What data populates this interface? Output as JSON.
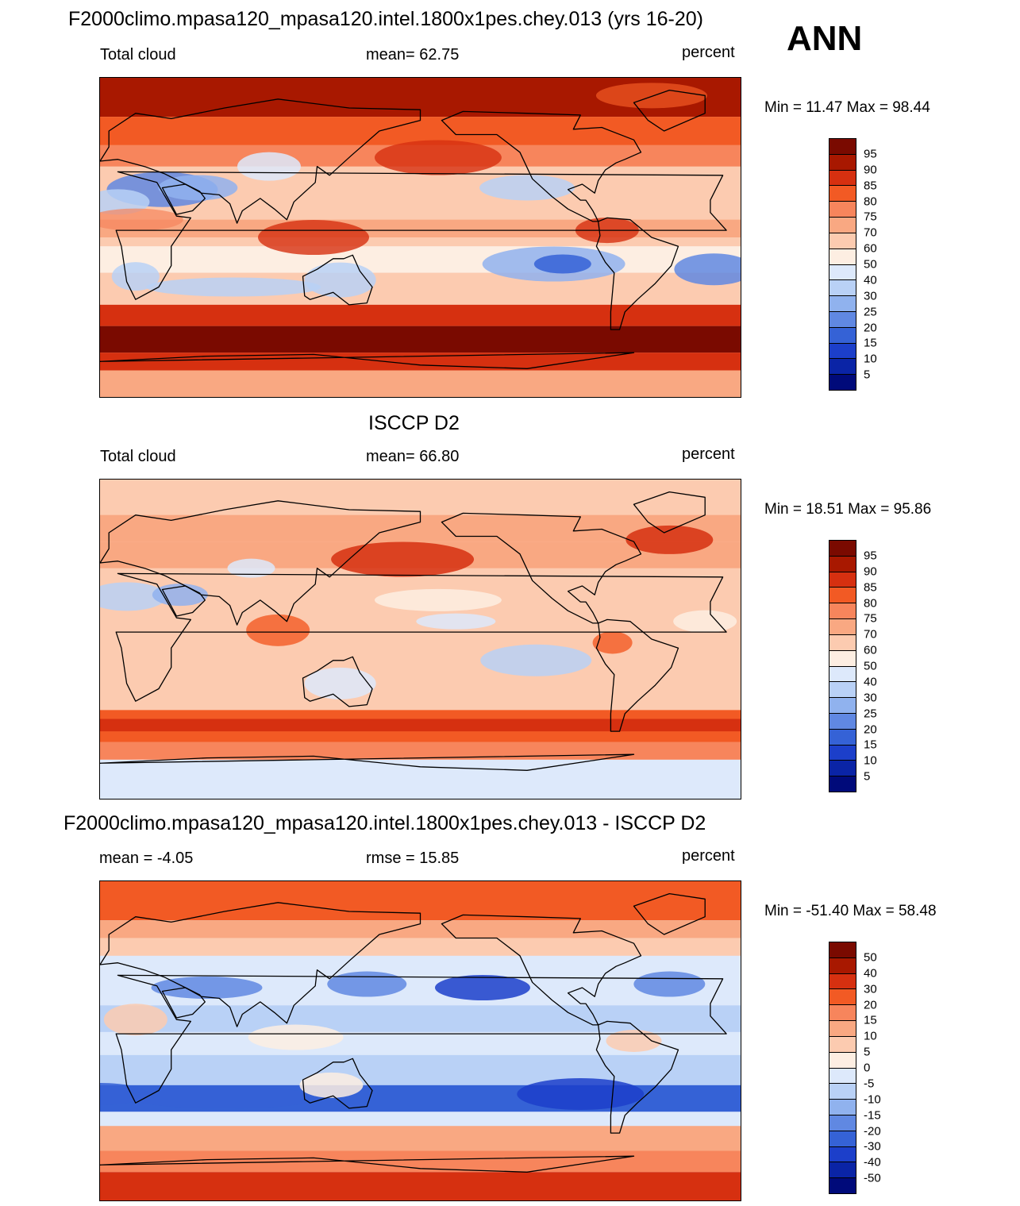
{
  "season": "ANN",
  "panels": [
    {
      "title": "F2000climo.mpasa120_mpasa120.intel.1800x1pes.chey.013 (yrs 16-20)",
      "left_label": "Total cloud",
      "center_label": "mean=  62.75",
      "right_label": "percent",
      "minmax": "Min =  11.47 Max =  98.44",
      "colorbar_labels": [
        "95",
        "90",
        "85",
        "80",
        "75",
        "70",
        "60",
        "50",
        "40",
        "30",
        "25",
        "20",
        "15",
        "10",
        "5"
      ],
      "palette": "abs"
    },
    {
      "title": "ISCCP D2",
      "left_label": "Total cloud",
      "center_label": "mean=  66.80",
      "right_label": "percent",
      "minmax": "Min =  18.51 Max =  95.86",
      "colorbar_labels": [
        "95",
        "90",
        "85",
        "80",
        "75",
        "70",
        "60",
        "50",
        "40",
        "30",
        "25",
        "20",
        "15",
        "10",
        "5"
      ],
      "palette": "abs"
    },
    {
      "title": "F2000climo.mpasa120_mpasa120.intel.1800x1pes.chey.013 - ISCCP D2",
      "left_label": "mean =  -4.05",
      "center_label": "rmse =  15.85",
      "right_label": "percent",
      "minmax": "Min = -51.40 Max =  58.48",
      "colorbar_labels": [
        "50",
        "40",
        "30",
        "20",
        "15",
        "10",
        "5",
        "0",
        "-5",
        "-10",
        "-15",
        "-20",
        "-30",
        "-40",
        "-50"
      ],
      "palette": "diff"
    }
  ],
  "colors": {
    "scale": [
      "#7a0a00",
      "#a81800",
      "#d63010",
      "#f25a24",
      "#f7855c",
      "#f9a882",
      "#fccbb0",
      "#fdeee2",
      "#dde9fb",
      "#b9d1f6",
      "#90b2ee",
      "#6088e2",
      "#3562d6",
      "#1c3fca",
      "#0a24a6",
      "#000a7a"
    ],
    "coast": "#000000"
  }
}
